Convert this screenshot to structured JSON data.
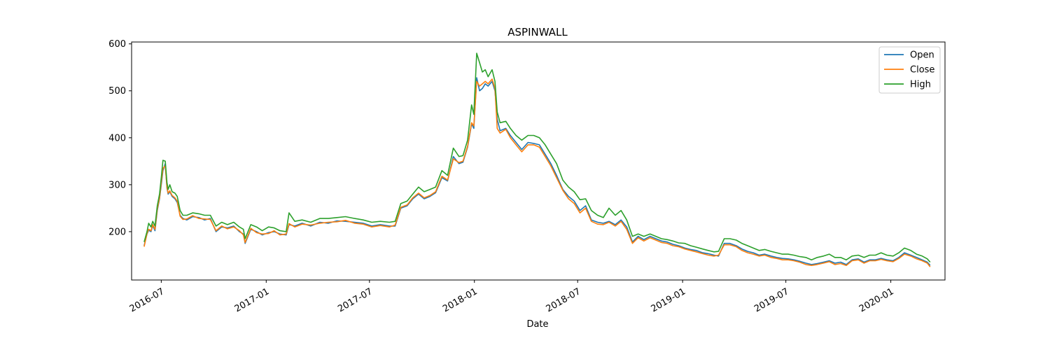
{
  "chart_data": {
    "type": "line",
    "title": "ASPINWALL",
    "xlabel": "Date",
    "ylabel": "",
    "x_ticks": [
      "2016-07",
      "2017-01",
      "2017-07",
      "2018-01",
      "2018-07",
      "2019-01",
      "2019-07",
      "2020-01"
    ],
    "y_ticks": [
      200,
      300,
      400,
      500,
      600
    ],
    "xlim": [
      "2016-05-10",
      "2020-04-05"
    ],
    "ylim": [
      97,
      604
    ],
    "legend_position": "top-right",
    "grid": false,
    "series": [
      {
        "name": "Open",
        "color": "#1f77b4",
        "x": [
          "2016-06-01",
          "2016-06-06",
          "2016-06-09",
          "2016-06-13",
          "2016-06-16",
          "2016-06-20",
          "2016-06-24",
          "2016-06-28",
          "2016-07-01",
          "2016-07-04",
          "2016-07-08",
          "2016-07-11",
          "2016-07-13",
          "2016-07-16",
          "2016-07-20",
          "2016-07-25",
          "2016-07-29",
          "2016-08-03",
          "2016-08-08",
          "2016-08-15",
          "2016-08-25",
          "2016-09-05",
          "2016-09-15",
          "2016-09-25",
          "2016-10-05",
          "2016-10-15",
          "2016-10-25",
          "2016-11-05",
          "2016-11-15",
          "2016-11-22",
          "2016-11-25",
          "2016-12-05",
          "2016-12-15",
          "2016-12-25",
          "2017-01-05",
          "2017-01-15",
          "2017-01-25",
          "2017-02-05",
          "2017-02-10",
          "2017-02-20",
          "2017-03-05",
          "2017-03-20",
          "2017-04-05",
          "2017-04-20",
          "2017-05-05",
          "2017-05-20",
          "2017-06-05",
          "2017-06-20",
          "2017-07-05",
          "2017-07-20",
          "2017-08-05",
          "2017-08-15",
          "2017-08-25",
          "2017-09-05",
          "2017-09-15",
          "2017-09-25",
          "2017-10-05",
          "2017-10-15",
          "2017-10-25",
          "2017-11-05",
          "2017-11-15",
          "2017-11-25",
          "2017-12-05",
          "2017-12-12",
          "2017-12-20",
          "2017-12-27",
          "2017-12-31",
          "2018-01-05",
          "2018-01-10",
          "2018-01-15",
          "2018-01-20",
          "2018-01-25",
          "2018-02-01",
          "2018-02-06",
          "2018-02-10",
          "2018-02-15",
          "2018-02-25",
          "2018-03-05",
          "2018-03-15",
          "2018-03-25",
          "2018-04-05",
          "2018-04-15",
          "2018-04-25",
          "2018-05-05",
          "2018-05-15",
          "2018-05-25",
          "2018-06-05",
          "2018-06-15",
          "2018-06-25",
          "2018-07-05",
          "2018-07-15",
          "2018-07-25",
          "2018-08-05",
          "2018-08-15",
          "2018-08-25",
          "2018-09-05",
          "2018-09-15",
          "2018-09-25",
          "2018-10-05",
          "2018-10-15",
          "2018-10-25",
          "2018-11-05",
          "2018-11-15",
          "2018-11-25",
          "2018-12-05",
          "2018-12-15",
          "2018-12-25",
          "2019-01-05",
          "2019-01-15",
          "2019-01-25",
          "2019-02-05",
          "2019-02-15",
          "2019-02-25",
          "2019-03-05",
          "2019-03-15",
          "2019-03-25",
          "2019-04-05",
          "2019-04-15",
          "2019-04-25",
          "2019-05-05",
          "2019-05-15",
          "2019-05-25",
          "2019-06-05",
          "2019-06-15",
          "2019-06-25",
          "2019-07-05",
          "2019-07-15",
          "2019-07-25",
          "2019-08-05",
          "2019-08-15",
          "2019-08-25",
          "2019-09-05",
          "2019-09-15",
          "2019-09-25",
          "2019-10-05",
          "2019-10-15",
          "2019-10-25",
          "2019-11-05",
          "2019-11-15",
          "2019-11-25",
          "2019-12-05",
          "2019-12-15",
          "2019-12-25",
          "2020-01-05",
          "2020-01-15",
          "2020-01-25",
          "2020-02-05",
          "2020-02-15",
          "2020-02-25",
          "2020-03-05",
          "2020-03-10"
        ],
        "values": [
          170,
          195,
          203,
          200,
          213,
          202,
          245,
          270,
          300,
          330,
          345,
          293,
          280,
          285,
          275,
          270,
          262,
          235,
          228,
          225,
          232,
          230,
          225,
          228,
          200,
          210,
          208,
          212,
          200,
          195,
          175,
          205,
          200,
          193,
          198,
          200,
          195,
          193,
          215,
          212,
          218,
          212,
          220,
          218,
          223,
          222,
          220,
          218,
          212,
          215,
          212,
          212,
          250,
          255,
          270,
          280,
          270,
          275,
          283,
          315,
          308,
          360,
          345,
          348,
          380,
          430,
          420,
          528,
          500,
          505,
          515,
          510,
          520,
          500,
          440,
          415,
          420,
          405,
          390,
          375,
          390,
          388,
          385,
          365,
          345,
          320,
          290,
          275,
          265,
          245,
          255,
          225,
          220,
          218,
          222,
          215,
          225,
          210,
          178,
          190,
          183,
          190,
          185,
          180,
          178,
          173,
          170,
          165,
          162,
          160,
          155,
          153,
          150,
          148,
          175,
          175,
          170,
          163,
          158,
          155,
          150,
          152,
          148,
          145,
          143,
          142,
          140,
          137,
          133,
          130,
          132,
          135,
          138,
          133,
          135,
          130,
          140,
          142,
          135,
          140,
          140,
          143,
          140,
          138,
          145,
          155,
          150,
          145,
          140,
          135,
          128
        ]
      },
      {
        "name": "Close",
        "color": "#ff7f0e",
        "x": [
          "2016-06-01",
          "2016-06-06",
          "2016-06-09",
          "2016-06-13",
          "2016-06-16",
          "2016-06-20",
          "2016-06-24",
          "2016-06-28",
          "2016-07-01",
          "2016-07-04",
          "2016-07-08",
          "2016-07-11",
          "2016-07-13",
          "2016-07-16",
          "2016-07-20",
          "2016-07-25",
          "2016-07-29",
          "2016-08-03",
          "2016-08-08",
          "2016-08-15",
          "2016-08-25",
          "2016-09-05",
          "2016-09-15",
          "2016-09-25",
          "2016-10-05",
          "2016-10-15",
          "2016-10-25",
          "2016-11-05",
          "2016-11-15",
          "2016-11-22",
          "2016-11-25",
          "2016-12-05",
          "2016-12-15",
          "2016-12-25",
          "2017-01-05",
          "2017-01-15",
          "2017-01-25",
          "2017-02-05",
          "2017-02-10",
          "2017-02-20",
          "2017-03-05",
          "2017-03-20",
          "2017-04-05",
          "2017-04-20",
          "2017-05-05",
          "2017-05-20",
          "2017-06-05",
          "2017-06-20",
          "2017-07-05",
          "2017-07-20",
          "2017-08-05",
          "2017-08-15",
          "2017-08-25",
          "2017-09-05",
          "2017-09-15",
          "2017-09-25",
          "2017-10-05",
          "2017-10-15",
          "2017-10-25",
          "2017-11-05",
          "2017-11-15",
          "2017-11-25",
          "2017-12-05",
          "2017-12-12",
          "2017-12-20",
          "2017-12-27",
          "2017-12-31",
          "2018-01-05",
          "2018-01-10",
          "2018-01-15",
          "2018-01-20",
          "2018-01-25",
          "2018-02-01",
          "2018-02-06",
          "2018-02-10",
          "2018-02-15",
          "2018-02-25",
          "2018-03-05",
          "2018-03-15",
          "2018-03-25",
          "2018-04-05",
          "2018-04-15",
          "2018-04-25",
          "2018-05-05",
          "2018-05-15",
          "2018-05-25",
          "2018-06-05",
          "2018-06-15",
          "2018-06-25",
          "2018-07-05",
          "2018-07-15",
          "2018-07-25",
          "2018-08-05",
          "2018-08-15",
          "2018-08-25",
          "2018-09-05",
          "2018-09-15",
          "2018-09-25",
          "2018-10-05",
          "2018-10-15",
          "2018-10-25",
          "2018-11-05",
          "2018-11-15",
          "2018-11-25",
          "2018-12-05",
          "2018-12-15",
          "2018-12-25",
          "2019-01-05",
          "2019-01-15",
          "2019-01-25",
          "2019-02-05",
          "2019-02-15",
          "2019-02-25",
          "2019-03-05",
          "2019-03-15",
          "2019-03-25",
          "2019-04-05",
          "2019-04-15",
          "2019-04-25",
          "2019-05-05",
          "2019-05-15",
          "2019-05-25",
          "2019-06-05",
          "2019-06-15",
          "2019-06-25",
          "2019-07-05",
          "2019-07-15",
          "2019-07-25",
          "2019-08-05",
          "2019-08-15",
          "2019-08-25",
          "2019-09-05",
          "2019-09-15",
          "2019-09-25",
          "2019-10-05",
          "2019-10-15",
          "2019-10-25",
          "2019-11-05",
          "2019-11-15",
          "2019-11-25",
          "2019-12-05",
          "2019-12-15",
          "2019-12-25",
          "2020-01-05",
          "2020-01-15",
          "2020-01-25",
          "2020-02-05",
          "2020-02-15",
          "2020-02-25",
          "2020-03-05",
          "2020-03-10"
        ],
        "values": [
          168,
          196,
          205,
          202,
          215,
          205,
          248,
          272,
          305,
          335,
          340,
          295,
          282,
          287,
          277,
          272,
          265,
          233,
          226,
          227,
          234,
          228,
          227,
          226,
          202,
          212,
          206,
          210,
          202,
          193,
          177,
          207,
          198,
          195,
          196,
          202,
          193,
          195,
          217,
          210,
          216,
          214,
          218,
          220,
          221,
          224,
          218,
          216,
          210,
          213,
          210,
          214,
          252,
          257,
          272,
          282,
          272,
          277,
          285,
          318,
          310,
          355,
          347,
          350,
          382,
          432,
          425,
          520,
          510,
          515,
          520,
          515,
          525,
          505,
          420,
          410,
          418,
          400,
          385,
          370,
          385,
          385,
          380,
          360,
          340,
          315,
          288,
          270,
          260,
          240,
          250,
          222,
          216,
          215,
          220,
          212,
          222,
          205,
          175,
          187,
          180,
          187,
          182,
          177,
          175,
          170,
          168,
          163,
          160,
          157,
          153,
          150,
          148,
          150,
          172,
          172,
          168,
          160,
          155,
          152,
          148,
          150,
          145,
          143,
          140,
          140,
          138,
          135,
          130,
          128,
          130,
          133,
          136,
          130,
          132,
          128,
          138,
          140,
          133,
          138,
          138,
          141,
          138,
          136,
          143,
          152,
          148,
          142,
          138,
          133,
          125
        ]
      },
      {
        "name": "High",
        "color": "#2ca02c",
        "x": [
          "2016-06-01",
          "2016-06-06",
          "2016-06-09",
          "2016-06-13",
          "2016-06-16",
          "2016-06-20",
          "2016-06-24",
          "2016-06-28",
          "2016-07-01",
          "2016-07-04",
          "2016-07-08",
          "2016-07-11",
          "2016-07-13",
          "2016-07-16",
          "2016-07-20",
          "2016-07-25",
          "2016-07-29",
          "2016-08-03",
          "2016-08-08",
          "2016-08-15",
          "2016-08-25",
          "2016-09-05",
          "2016-09-15",
          "2016-09-25",
          "2016-10-05",
          "2016-10-15",
          "2016-10-25",
          "2016-11-05",
          "2016-11-15",
          "2016-11-22",
          "2016-11-25",
          "2016-12-05",
          "2016-12-15",
          "2016-12-25",
          "2017-01-05",
          "2017-01-15",
          "2017-01-25",
          "2017-02-05",
          "2017-02-10",
          "2017-02-20",
          "2017-03-05",
          "2017-03-20",
          "2017-04-05",
          "2017-04-20",
          "2017-05-05",
          "2017-05-20",
          "2017-06-05",
          "2017-06-20",
          "2017-07-05",
          "2017-07-20",
          "2017-08-05",
          "2017-08-15",
          "2017-08-25",
          "2017-09-05",
          "2017-09-15",
          "2017-09-25",
          "2017-10-05",
          "2017-10-15",
          "2017-10-25",
          "2017-11-05",
          "2017-11-15",
          "2017-11-25",
          "2017-12-05",
          "2017-12-12",
          "2017-12-20",
          "2017-12-27",
          "2017-12-31",
          "2018-01-05",
          "2018-01-10",
          "2018-01-15",
          "2018-01-20",
          "2018-01-25",
          "2018-02-01",
          "2018-02-06",
          "2018-02-10",
          "2018-02-15",
          "2018-02-25",
          "2018-03-05",
          "2018-03-15",
          "2018-03-25",
          "2018-04-05",
          "2018-04-15",
          "2018-04-25",
          "2018-05-05",
          "2018-05-15",
          "2018-05-25",
          "2018-06-05",
          "2018-06-15",
          "2018-06-25",
          "2018-07-05",
          "2018-07-15",
          "2018-07-25",
          "2018-08-05",
          "2018-08-15",
          "2018-08-25",
          "2018-09-05",
          "2018-09-15",
          "2018-09-25",
          "2018-10-05",
          "2018-10-15",
          "2018-10-25",
          "2018-11-05",
          "2018-11-15",
          "2018-11-25",
          "2018-12-05",
          "2018-12-15",
          "2018-12-25",
          "2019-01-05",
          "2019-01-15",
          "2019-01-25",
          "2019-02-05",
          "2019-02-15",
          "2019-02-25",
          "2019-03-05",
          "2019-03-15",
          "2019-03-25",
          "2019-04-05",
          "2019-04-15",
          "2019-04-25",
          "2019-05-05",
          "2019-05-15",
          "2019-05-25",
          "2019-06-05",
          "2019-06-15",
          "2019-06-25",
          "2019-07-05",
          "2019-07-15",
          "2019-07-25",
          "2019-08-05",
          "2019-08-15",
          "2019-08-25",
          "2019-09-05",
          "2019-09-15",
          "2019-09-25",
          "2019-10-05",
          "2019-10-15",
          "2019-10-25",
          "2019-11-05",
          "2019-11-15",
          "2019-11-25",
          "2019-12-05",
          "2019-12-15",
          "2019-12-25",
          "2020-01-05",
          "2020-01-15",
          "2020-01-25",
          "2020-02-05",
          "2020-02-15",
          "2020-02-25",
          "2020-03-05",
          "2020-03-10"
        ],
        "values": [
          178,
          200,
          218,
          210,
          222,
          212,
          255,
          280,
          315,
          352,
          350,
          305,
          290,
          300,
          285,
          282,
          275,
          245,
          235,
          235,
          240,
          238,
          235,
          235,
          212,
          220,
          215,
          220,
          210,
          205,
          185,
          215,
          210,
          202,
          210,
          208,
          202,
          200,
          240,
          222,
          225,
          220,
          228,
          228,
          230,
          232,
          228,
          225,
          220,
          222,
          220,
          222,
          260,
          265,
          280,
          295,
          285,
          290,
          295,
          330,
          320,
          378,
          360,
          362,
          395,
          470,
          450,
          580,
          560,
          540,
          545,
          530,
          545,
          520,
          455,
          432,
          435,
          420,
          405,
          395,
          405,
          405,
          400,
          385,
          365,
          345,
          310,
          295,
          285,
          268,
          270,
          245,
          235,
          230,
          250,
          235,
          245,
          225,
          190,
          195,
          190,
          195,
          190,
          185,
          183,
          180,
          176,
          175,
          170,
          167,
          163,
          160,
          157,
          158,
          185,
          185,
          182,
          175,
          170,
          165,
          160,
          162,
          158,
          155,
          152,
          152,
          150,
          147,
          145,
          140,
          145,
          148,
          152,
          145,
          145,
          140,
          148,
          150,
          145,
          150,
          150,
          155,
          150,
          148,
          155,
          165,
          160,
          152,
          148,
          142,
          135
        ]
      }
    ]
  }
}
